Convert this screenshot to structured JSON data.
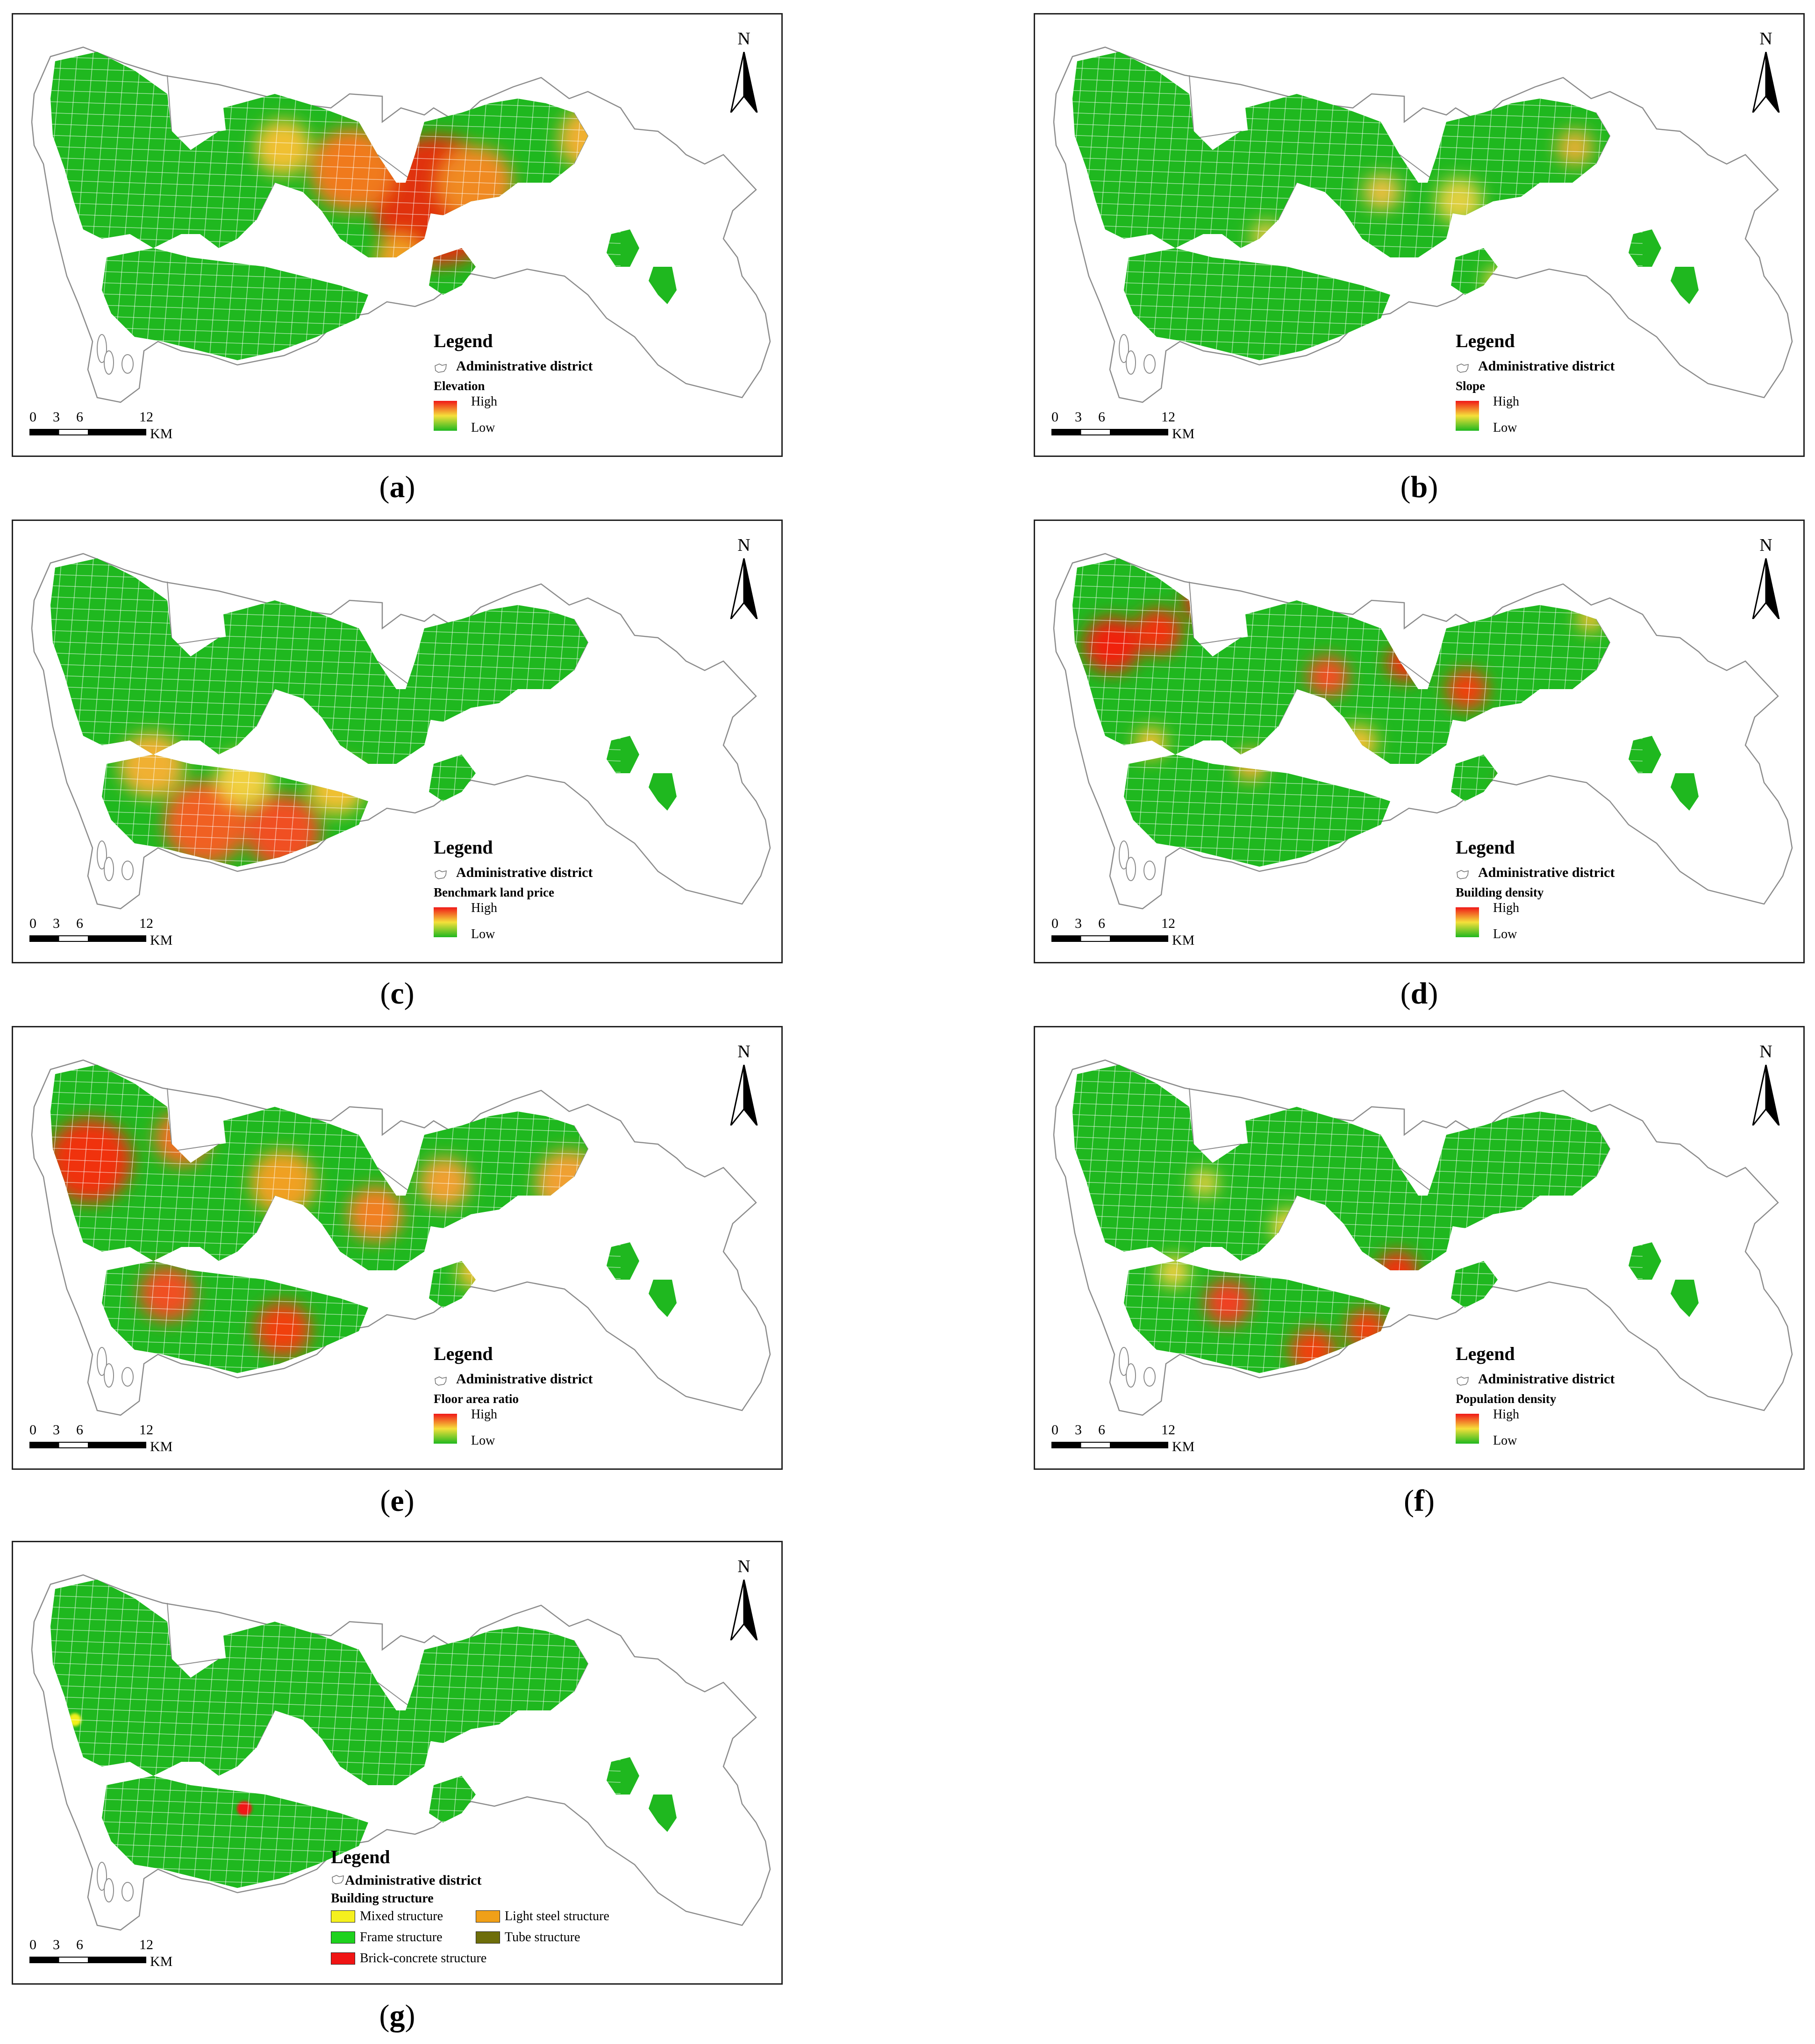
{
  "panels": [
    {
      "id": "a",
      "caption": "a",
      "variable": "Elevation",
      "high": "High",
      "low": "Low",
      "theme": "elevation"
    },
    {
      "id": "b",
      "caption": "b",
      "variable": "Slope",
      "high": "High",
      "low": "Low",
      "theme": "slope"
    },
    {
      "id": "c",
      "caption": "c",
      "variable": "Benchmark land price",
      "high": "High",
      "low": "Low",
      "theme": "price"
    },
    {
      "id": "d",
      "caption": "d",
      "variable": "Building density",
      "high": "High",
      "low": "Low",
      "theme": "density"
    },
    {
      "id": "e",
      "caption": "e",
      "variable": "Floor area ratio",
      "high": "High",
      "low": "Low",
      "theme": "far"
    },
    {
      "id": "f",
      "caption": "f",
      "variable": "Population density",
      "high": "High",
      "low": "Low",
      "theme": "population"
    },
    {
      "id": "g",
      "caption": "g",
      "variable": "Building structure",
      "theme": "structure",
      "categories": [
        {
          "label": "Mixed structure",
          "color": "#f5f01e"
        },
        {
          "label": "Light steel structure",
          "color": "#f0a018"
        },
        {
          "label": "Frame structure",
          "color": "#1ed21e"
        },
        {
          "label": "Tube structure",
          "color": "#6e6e0a"
        },
        {
          "label": "Brick-concrete structure",
          "color": "#f01414"
        }
      ]
    }
  ],
  "common": {
    "legend_title": "Legend",
    "admin_label": "Administrative district",
    "north": "N",
    "scale_ticks": [
      "0",
      "3",
      "6",
      "12"
    ],
    "scale_unit": "KM"
  },
  "colors": {
    "high": "#f01818",
    "mid": "#f5e03a",
    "low": "#1fb81f",
    "boundary": "#8c8c8c"
  }
}
